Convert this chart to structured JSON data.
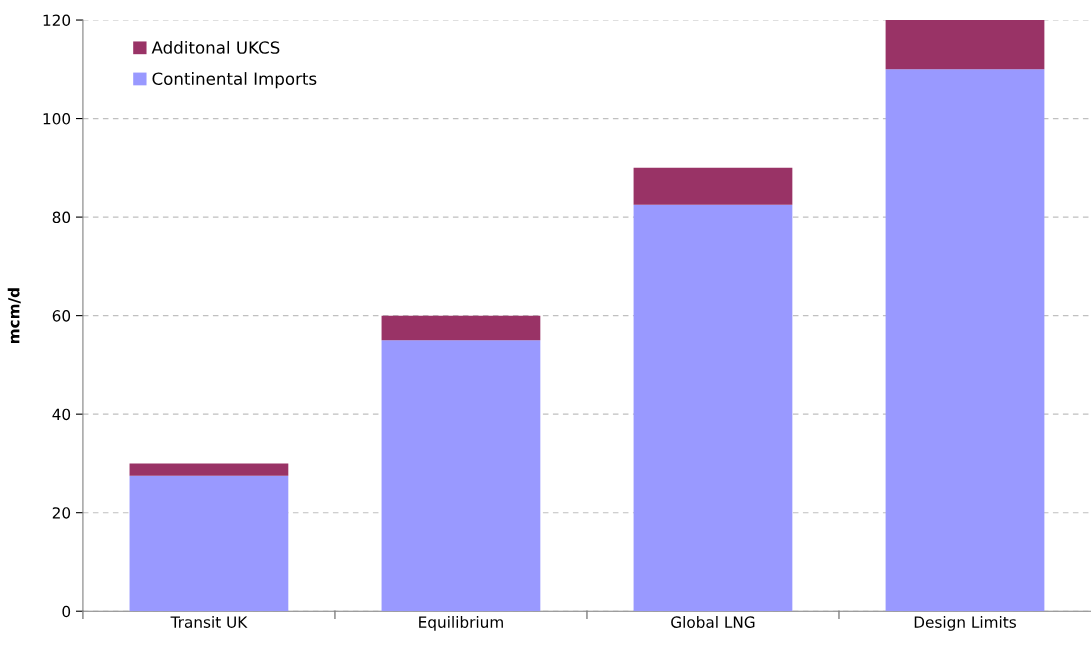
{
  "chart_data": {
    "type": "bar",
    "stacked": true,
    "ylabel": "mcm/d",
    "categories": [
      "Transit UK",
      "Equilibrium",
      "Global LNG",
      "Design Limits"
    ],
    "series": [
      {
        "name": "Continental Imports",
        "color": "#9999ff",
        "values": [
          27.5,
          55,
          82.5,
          110
        ]
      },
      {
        "name": "Additonal UKCS",
        "color": "#993366",
        "values": [
          2.5,
          5,
          7.5,
          10
        ]
      }
    ],
    "ylim": [
      0,
      120
    ],
    "yticks": [
      0,
      20,
      40,
      60,
      80,
      100,
      120
    ],
    "grid": "y",
    "legend": "top left"
  }
}
